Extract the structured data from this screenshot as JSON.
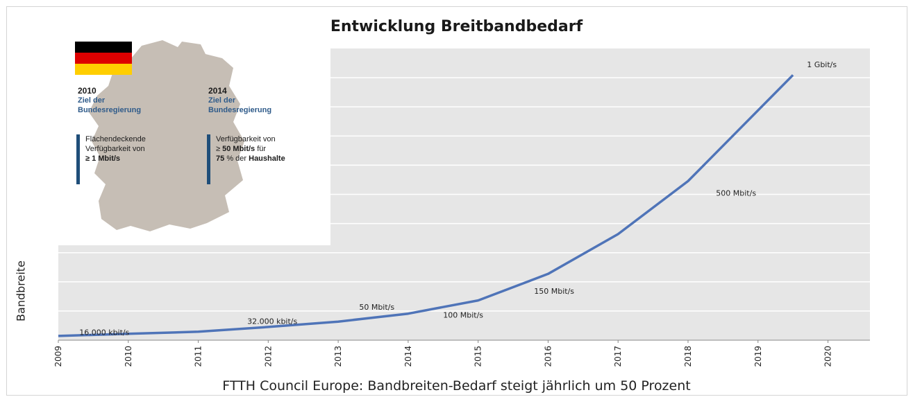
{
  "chart_data": {
    "type": "line",
    "title": "Entwicklung Breitbandbedarf",
    "ylabel": "Bandbreite",
    "footer": "FTTH Council Europe: Bandbreiten-Bedarf steigt jährlich um 50 Prozent",
    "x_ticks": [
      "2009",
      "2010",
      "2011",
      "2012",
      "2013",
      "2014",
      "2015",
      "2016",
      "2017",
      "2018",
      "2019",
      "2020"
    ],
    "series": [
      {
        "x": [
          2009,
          2010,
          2011,
          2012,
          2013,
          2014,
          2015,
          2016,
          2017,
          2018,
          2019.5
        ],
        "y": [
          16,
          24,
          32,
          50,
          70,
          100,
          150,
          250,
          400,
          600,
          1000
        ],
        "unit_note": "y in Mbit/s, estimated from the drawn curve"
      }
    ],
    "data_labels": [
      {
        "text": "16.000 kbit/s",
        "x": 2009.3,
        "y": 20
      },
      {
        "text": "32.000 kbit/s",
        "x": 2011.7,
        "y": 62
      },
      {
        "text": "50 Mbit/s",
        "x": 2013.3,
        "y": 115
      },
      {
        "text": "100 Mbit/s",
        "x": 2014.5,
        "y": 85
      },
      {
        "text": "150 Mbit/s",
        "x": 2015.8,
        "y": 175
      },
      {
        "text": "500 Mbit/s",
        "x": 2018.4,
        "y": 545
      },
      {
        "text": "1 Gbit/s",
        "x": 2019.7,
        "y": 1030
      }
    ],
    "grid": true,
    "x_range": [
      2009,
      2020.6
    ],
    "y_range": [
      0,
      1100
    ]
  },
  "inset": {
    "left": {
      "year": "2010",
      "goal_line1": "Ziel der",
      "goal_line2": "Bundesregierung",
      "text_line1": "Flächendeckende",
      "text_line2": "Verfügbarkeit von",
      "text_line3": "≥ 1 Mbit/s"
    },
    "right": {
      "year": "2014",
      "goal_line1": "Ziel der",
      "goal_line2": "Bundesregierung",
      "text_line1": "Verfügbarkeit von",
      "text_line2_pre": "≥",
      "text_line2_bold": "50 Mbit/s",
      "text_line2_post": "für",
      "text_line3_bold1": "75",
      "text_line3_mid": "% der",
      "text_line3_bold2": "Haushalte"
    },
    "colors": {
      "map": "#c6beb5",
      "accent": "#1f4e79",
      "goal_text": "#2f5b8a"
    },
    "flag_colors": [
      "#000000",
      "#dd0000",
      "#ffce00"
    ]
  },
  "colors": {
    "plot_bg": "#e6e6e6",
    "line": "#4f74b8",
    "grid": "#ffffff",
    "axis": "#888888"
  }
}
